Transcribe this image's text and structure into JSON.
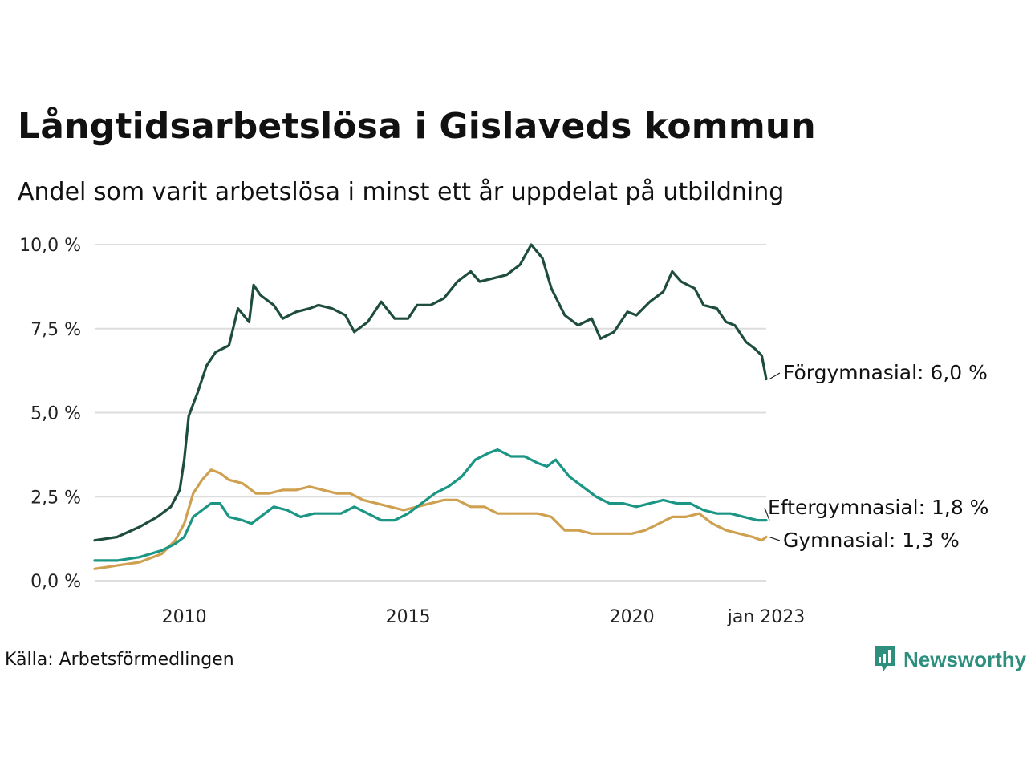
{
  "title": "Långtidsarbetslösa i Gislaveds kommun",
  "subtitle": "Andel som varit arbetslösa i minst ett år uppdelat på utbildning",
  "source": "Källa: Arbetsförmedlingen",
  "brand": "Newsworthy",
  "colors": {
    "forgymnasial": "#1e4d3f",
    "eftergymnasial": "#1b9584",
    "gymnasial": "#cfa050",
    "grid": "#dddddd",
    "brand": "#2f8f7f"
  },
  "chart_data": {
    "type": "line",
    "xlabel": "",
    "ylabel": "",
    "x_range": [
      2008.0,
      2023.0
    ],
    "ylim": [
      0,
      10
    ],
    "y_ticks": [
      0,
      2.5,
      5,
      7.5,
      10
    ],
    "y_tick_labels": [
      "0,0 %",
      "2,5 %",
      "5,0 %",
      "7,5 %",
      "10,0 %"
    ],
    "x_ticks": [
      2010,
      2015,
      2020,
      2023.0
    ],
    "x_tick_labels": [
      "2010",
      "2015",
      "2020",
      "jan 2023"
    ],
    "grid": "horizontal",
    "series": [
      {
        "name": "Förgymnasial",
        "end_label": "Förgymnasial: 6,0 %",
        "color": "#1e4d3f",
        "points": [
          [
            2008.0,
            1.2
          ],
          [
            2008.5,
            1.3
          ],
          [
            2009.0,
            1.6
          ],
          [
            2009.4,
            1.9
          ],
          [
            2009.7,
            2.2
          ],
          [
            2009.9,
            2.7
          ],
          [
            2010.0,
            3.6
          ],
          [
            2010.1,
            4.9
          ],
          [
            2010.3,
            5.6
          ],
          [
            2010.5,
            6.4
          ],
          [
            2010.7,
            6.8
          ],
          [
            2011.0,
            7.0
          ],
          [
            2011.2,
            8.1
          ],
          [
            2011.45,
            7.7
          ],
          [
            2011.55,
            8.8
          ],
          [
            2011.7,
            8.5
          ],
          [
            2012.0,
            8.2
          ],
          [
            2012.2,
            7.8
          ],
          [
            2012.5,
            8.0
          ],
          [
            2012.8,
            8.1
          ],
          [
            2013.0,
            8.2
          ],
          [
            2013.3,
            8.1
          ],
          [
            2013.6,
            7.9
          ],
          [
            2013.8,
            7.4
          ],
          [
            2014.1,
            7.7
          ],
          [
            2014.4,
            8.3
          ],
          [
            2014.7,
            7.8
          ],
          [
            2015.0,
            7.8
          ],
          [
            2015.2,
            8.2
          ],
          [
            2015.5,
            8.2
          ],
          [
            2015.8,
            8.4
          ],
          [
            2016.1,
            8.9
          ],
          [
            2016.4,
            9.2
          ],
          [
            2016.6,
            8.9
          ],
          [
            2016.9,
            9.0
          ],
          [
            2017.2,
            9.1
          ],
          [
            2017.5,
            9.4
          ],
          [
            2017.75,
            10.0
          ],
          [
            2018.0,
            9.6
          ],
          [
            2018.2,
            8.7
          ],
          [
            2018.5,
            7.9
          ],
          [
            2018.8,
            7.6
          ],
          [
            2019.1,
            7.8
          ],
          [
            2019.3,
            7.2
          ],
          [
            2019.6,
            7.4
          ],
          [
            2019.9,
            8.0
          ],
          [
            2020.1,
            7.9
          ],
          [
            2020.4,
            8.3
          ],
          [
            2020.7,
            8.6
          ],
          [
            2020.9,
            9.2
          ],
          [
            2021.1,
            8.9
          ],
          [
            2021.4,
            8.7
          ],
          [
            2021.6,
            8.2
          ],
          [
            2021.9,
            8.1
          ],
          [
            2022.1,
            7.7
          ],
          [
            2022.3,
            7.6
          ],
          [
            2022.55,
            7.1
          ],
          [
            2022.75,
            6.9
          ],
          [
            2022.9,
            6.7
          ],
          [
            2023.0,
            6.0
          ]
        ]
      },
      {
        "name": "Eftergymnasial",
        "end_label": "Eftergymnasial: 1,8 %",
        "color": "#1b9584",
        "points": [
          [
            2008.0,
            0.6
          ],
          [
            2008.5,
            0.6
          ],
          [
            2009.0,
            0.7
          ],
          [
            2009.5,
            0.9
          ],
          [
            2009.8,
            1.1
          ],
          [
            2010.0,
            1.3
          ],
          [
            2010.2,
            1.9
          ],
          [
            2010.4,
            2.1
          ],
          [
            2010.6,
            2.3
          ],
          [
            2010.8,
            2.3
          ],
          [
            2011.0,
            1.9
          ],
          [
            2011.3,
            1.8
          ],
          [
            2011.5,
            1.7
          ],
          [
            2011.8,
            2.0
          ],
          [
            2012.0,
            2.2
          ],
          [
            2012.3,
            2.1
          ],
          [
            2012.6,
            1.9
          ],
          [
            2012.9,
            2.0
          ],
          [
            2013.2,
            2.0
          ],
          [
            2013.5,
            2.0
          ],
          [
            2013.8,
            2.2
          ],
          [
            2014.1,
            2.0
          ],
          [
            2014.4,
            1.8
          ],
          [
            2014.7,
            1.8
          ],
          [
            2015.0,
            2.0
          ],
          [
            2015.3,
            2.3
          ],
          [
            2015.6,
            2.6
          ],
          [
            2015.9,
            2.8
          ],
          [
            2016.2,
            3.1
          ],
          [
            2016.5,
            3.6
          ],
          [
            2016.8,
            3.8
          ],
          [
            2017.0,
            3.9
          ],
          [
            2017.3,
            3.7
          ],
          [
            2017.6,
            3.7
          ],
          [
            2017.9,
            3.5
          ],
          [
            2018.1,
            3.4
          ],
          [
            2018.3,
            3.6
          ],
          [
            2018.6,
            3.1
          ],
          [
            2018.9,
            2.8
          ],
          [
            2019.2,
            2.5
          ],
          [
            2019.5,
            2.3
          ],
          [
            2019.8,
            2.3
          ],
          [
            2020.1,
            2.2
          ],
          [
            2020.4,
            2.3
          ],
          [
            2020.7,
            2.4
          ],
          [
            2021.0,
            2.3
          ],
          [
            2021.3,
            2.3
          ],
          [
            2021.6,
            2.1
          ],
          [
            2021.9,
            2.0
          ],
          [
            2022.2,
            2.0
          ],
          [
            2022.5,
            1.9
          ],
          [
            2022.8,
            1.8
          ],
          [
            2023.0,
            1.8
          ]
        ]
      },
      {
        "name": "Gymnasial",
        "end_label": "Gymnasial: 1,3 %",
        "color": "#cfa050",
        "points": [
          [
            2008.0,
            0.35
          ],
          [
            2008.5,
            0.45
          ],
          [
            2009.0,
            0.55
          ],
          [
            2009.5,
            0.8
          ],
          [
            2009.8,
            1.2
          ],
          [
            2010.0,
            1.7
          ],
          [
            2010.2,
            2.6
          ],
          [
            2010.4,
            3.0
          ],
          [
            2010.6,
            3.3
          ],
          [
            2010.8,
            3.2
          ],
          [
            2011.0,
            3.0
          ],
          [
            2011.3,
            2.9
          ],
          [
            2011.6,
            2.6
          ],
          [
            2011.9,
            2.6
          ],
          [
            2012.2,
            2.7
          ],
          [
            2012.5,
            2.7
          ],
          [
            2012.8,
            2.8
          ],
          [
            2013.1,
            2.7
          ],
          [
            2013.4,
            2.6
          ],
          [
            2013.7,
            2.6
          ],
          [
            2014.0,
            2.4
          ],
          [
            2014.3,
            2.3
          ],
          [
            2014.6,
            2.2
          ],
          [
            2014.9,
            2.1
          ],
          [
            2015.2,
            2.2
          ],
          [
            2015.5,
            2.3
          ],
          [
            2015.8,
            2.4
          ],
          [
            2016.1,
            2.4
          ],
          [
            2016.4,
            2.2
          ],
          [
            2016.7,
            2.2
          ],
          [
            2017.0,
            2.0
          ],
          [
            2017.3,
            2.0
          ],
          [
            2017.6,
            2.0
          ],
          [
            2017.9,
            2.0
          ],
          [
            2018.2,
            1.9
          ],
          [
            2018.5,
            1.5
          ],
          [
            2018.8,
            1.5
          ],
          [
            2019.1,
            1.4
          ],
          [
            2019.4,
            1.4
          ],
          [
            2019.7,
            1.4
          ],
          [
            2020.0,
            1.4
          ],
          [
            2020.3,
            1.5
          ],
          [
            2020.6,
            1.7
          ],
          [
            2020.9,
            1.9
          ],
          [
            2021.2,
            1.9
          ],
          [
            2021.5,
            2.0
          ],
          [
            2021.8,
            1.7
          ],
          [
            2022.1,
            1.5
          ],
          [
            2022.4,
            1.4
          ],
          [
            2022.7,
            1.3
          ],
          [
            2022.9,
            1.2
          ],
          [
            2023.0,
            1.3
          ]
        ]
      }
    ]
  }
}
